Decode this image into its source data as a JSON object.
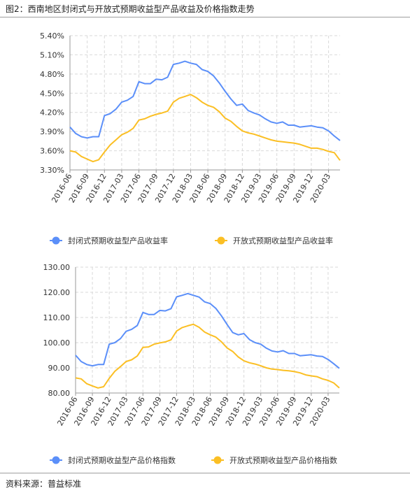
{
  "figure_title": "图2：西南地区封闭式与开放式预期收益型产品收益及价格指数走势",
  "source_note": "资料来源：普益标准",
  "chart_data": [
    {
      "type": "line",
      "x": [
        "2016-06",
        "2016-07",
        "2016-08",
        "2016-09",
        "2016-10",
        "2016-11",
        "2016-12",
        "2017-01",
        "2017-02",
        "2017-03",
        "2017-04",
        "2017-05",
        "2017-06",
        "2017-07",
        "2017-08",
        "2017-09",
        "2017-10",
        "2017-11",
        "2017-12",
        "2018-01",
        "2018-02",
        "2018-03",
        "2018-04",
        "2018-05",
        "2018-06",
        "2018-07",
        "2018-08",
        "2018-09",
        "2018-10",
        "2018-11",
        "2018-12",
        "2019-01",
        "2019-02",
        "2019-03",
        "2019-04",
        "2019-05",
        "2019-06",
        "2019-07",
        "2019-08",
        "2019-09",
        "2019-10",
        "2019-11",
        "2019-12",
        "2020-01",
        "2020-02",
        "2020-03",
        "2020-04",
        "2020-05"
      ],
      "xticks": [
        "2016-06",
        "2016-09",
        "2016-12",
        "2017-03",
        "2017-06",
        "2017-09",
        "2017-12",
        "2018-03",
        "2018-06",
        "2018-09",
        "2018-12",
        "2019-03",
        "2019-06",
        "2019-09",
        "2019-12",
        "2020-03"
      ],
      "yticks": [
        "5.40%",
        "5.10%",
        "4.80%",
        "4.50%",
        "4.20%",
        "3.90%",
        "3.60%",
        "3.30%"
      ],
      "ylim": [
        3.3,
        5.4
      ],
      "grid": true,
      "legend_position": "bottom",
      "series": [
        {
          "name": "封闭式预期收益型产品收益率",
          "color": "#5b8ff9",
          "values": [
            3.97,
            3.87,
            3.82,
            3.8,
            3.82,
            3.82,
            4.15,
            4.18,
            4.25,
            4.36,
            4.39,
            4.45,
            4.68,
            4.65,
            4.65,
            4.72,
            4.71,
            4.75,
            4.95,
            4.97,
            5.0,
            4.97,
            4.95,
            4.87,
            4.84,
            4.77,
            4.66,
            4.53,
            4.41,
            4.31,
            4.33,
            4.23,
            4.19,
            4.16,
            4.1,
            4.05,
            4.03,
            4.05,
            4.0,
            4.0,
            3.97,
            3.98,
            3.99,
            3.97,
            3.96,
            3.91,
            3.83,
            3.76
          ]
        },
        {
          "name": "开放式预期收益型产品收益率",
          "color": "#fbbf24",
          "values": [
            3.6,
            3.58,
            3.51,
            3.47,
            3.43,
            3.46,
            3.58,
            3.69,
            3.77,
            3.85,
            3.89,
            3.95,
            4.08,
            4.1,
            4.14,
            4.17,
            4.19,
            4.22,
            4.36,
            4.42,
            4.45,
            4.48,
            4.43,
            4.36,
            4.31,
            4.28,
            4.21,
            4.11,
            4.06,
            3.98,
            3.91,
            3.88,
            3.86,
            3.83,
            3.8,
            3.77,
            3.75,
            3.74,
            3.73,
            3.72,
            3.7,
            3.67,
            3.64,
            3.64,
            3.62,
            3.59,
            3.57,
            3.45
          ]
        }
      ]
    },
    {
      "type": "line",
      "x": [
        "2016-06",
        "2016-07",
        "2016-08",
        "2016-09",
        "2016-10",
        "2016-11",
        "2016-12",
        "2017-01",
        "2017-02",
        "2017-03",
        "2017-04",
        "2017-05",
        "2017-06",
        "2017-07",
        "2017-08",
        "2017-09",
        "2017-10",
        "2017-11",
        "2017-12",
        "2018-01",
        "2018-02",
        "2018-03",
        "2018-04",
        "2018-05",
        "2018-06",
        "2018-07",
        "2018-08",
        "2018-09",
        "2018-10",
        "2018-11",
        "2018-12",
        "2019-01",
        "2019-02",
        "2019-03",
        "2019-04",
        "2019-05",
        "2019-06",
        "2019-07",
        "2019-08",
        "2019-09",
        "2019-10",
        "2019-11",
        "2019-12",
        "2020-01",
        "2020-02",
        "2020-03",
        "2020-04",
        "2020-05"
      ],
      "xticks": [
        "2016-06",
        "2016-09",
        "2016-12",
        "2017-03",
        "2017-06",
        "2017-09",
        "2017-12",
        "2018-03",
        "2018-06",
        "2018-09",
        "2018-12",
        "2019-03",
        "2019-06",
        "2019-09",
        "2019-12",
        "2020-03"
      ],
      "yticks": [
        "130.00",
        "120.00",
        "110.00",
        "100.00",
        "90.00",
        "80.00"
      ],
      "ylim": [
        80,
        130
      ],
      "grid": true,
      "legend_position": "bottom",
      "series": [
        {
          "name": "封闭式预期收益型产品价格指数",
          "color": "#5b8ff9",
          "values": [
            95.0,
            92.5,
            91.3,
            90.8,
            91.3,
            91.3,
            99.4,
            100.0,
            101.6,
            104.5,
            105.3,
            106.8,
            112.0,
            111.2,
            111.2,
            112.8,
            112.6,
            113.5,
            118.2,
            118.8,
            119.5,
            118.8,
            118.1,
            116.2,
            115.5,
            113.6,
            110.6,
            107.2,
            104.0,
            103.1,
            103.6,
            101.2,
            100.0,
            99.4,
            97.8,
            96.7,
            96.3,
            96.8,
            95.7,
            95.7,
            94.8,
            95.0,
            95.2,
            94.7,
            94.5,
            93.3,
            91.6,
            89.8
          ]
        },
        {
          "name": "开放式预期收益型产品价格指数",
          "color": "#fbbf24",
          "values": [
            86.0,
            85.6,
            83.7,
            82.8,
            82.0,
            82.5,
            85.8,
            88.6,
            90.5,
            92.5,
            93.2,
            94.7,
            98.1,
            98.3,
            99.4,
            99.9,
            100.3,
            101.1,
            104.6,
            106.0,
            106.7,
            107.3,
            106.1,
            104.2,
            103.1,
            102.2,
            100.3,
            97.9,
            96.5,
            94.3,
            92.8,
            92.0,
            91.5,
            90.8,
            90.0,
            89.5,
            89.3,
            89.0,
            88.8,
            88.5,
            88.0,
            87.2,
            86.8,
            86.5,
            85.6,
            85.0,
            84.0,
            82.0
          ]
        }
      ]
    }
  ]
}
